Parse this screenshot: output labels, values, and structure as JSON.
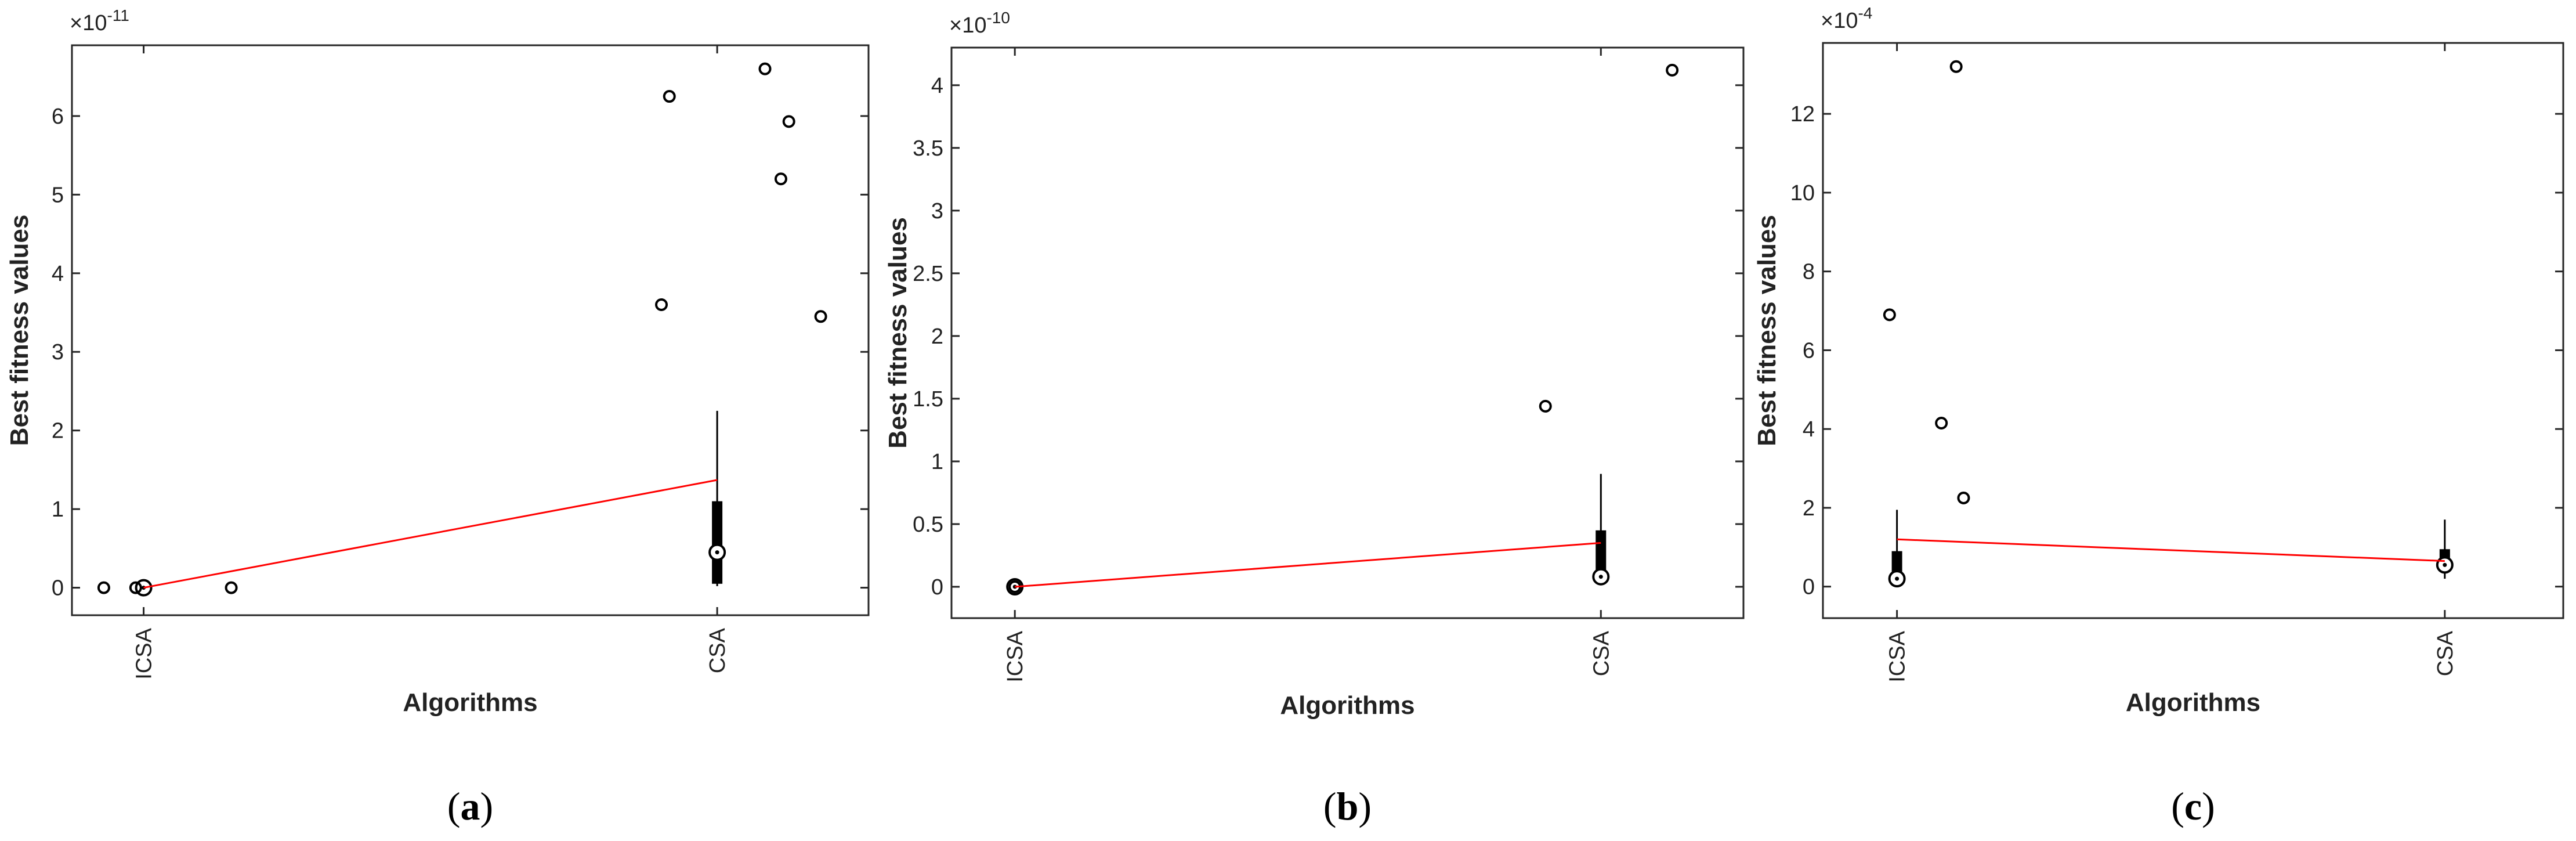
{
  "chart_data": [
    {
      "type": "box",
      "panel_label": "a",
      "xlabel": "Algorithms",
      "ylabel": "Best fitness values",
      "y_exponent": "-11",
      "ylim": [
        -0.35,
        6.9
      ],
      "yticks": [
        0,
        1,
        2,
        3,
        4,
        5,
        6
      ],
      "categories": [
        "ICSA",
        "CSA"
      ],
      "boxes": [
        {
          "category": "ICSA",
          "whisker_low": 0.0,
          "q1": 0.0,
          "median": 0.0,
          "q3": 0.0,
          "whisker_high": 0.0,
          "outliers": [
            {
              "dx": -0.05,
              "y": 0.0
            },
            {
              "dx": -0.01,
              "y": 0.0
            },
            {
              "dx": 0.11,
              "y": 0.0
            }
          ]
        },
        {
          "category": "CSA",
          "whisker_low": 0.02,
          "q1": 0.05,
          "median": 0.45,
          "q3": 1.1,
          "whisker_high": 2.25,
          "outliers": [
            {
              "dx": -0.07,
              "y": 3.6
            },
            {
              "dx": -0.06,
              "y": 6.25
            },
            {
              "dx": 0.06,
              "y": 6.6
            },
            {
              "dx": 0.09,
              "y": 5.93
            },
            {
              "dx": 0.08,
              "y": 5.2
            },
            {
              "dx": 0.13,
              "y": 3.45
            }
          ]
        }
      ],
      "mean_line": [
        0.0,
        1.37
      ],
      "style": {
        "mean_line_color": "#ff0000",
        "box_color": "#000000"
      }
    },
    {
      "type": "box",
      "panel_label": "b",
      "xlabel": "Algorithms",
      "ylabel": "Best fitness values",
      "y_exponent": "-10",
      "ylim": [
        -0.25,
        4.3
      ],
      "yticks": [
        0,
        0.5,
        1,
        1.5,
        2,
        2.5,
        3,
        3.5,
        4
      ],
      "categories": [
        "ICSA",
        "CSA"
      ],
      "boxes": [
        {
          "category": "ICSA",
          "whisker_low": 0.0,
          "q1": 0.0,
          "median": 0.0,
          "q3": 0.0,
          "whisker_high": 0.0,
          "outliers": [
            {
              "dx": 0.0,
              "y": 0.0
            }
          ]
        },
        {
          "category": "CSA",
          "whisker_low": 0.03,
          "q1": 0.06,
          "median": 0.08,
          "q3": 0.45,
          "whisker_high": 0.9,
          "outliers": [
            {
              "dx": -0.07,
              "y": 1.44
            },
            {
              "dx": 0.09,
              "y": 4.12
            }
          ]
        }
      ],
      "mean_line": [
        0.0,
        0.35
      ],
      "style": {
        "mean_line_color": "#ff0000",
        "box_color": "#000000"
      }
    },
    {
      "type": "box",
      "panel_label": "c",
      "xlabel": "Algorithms",
      "ylabel": "Best fitness values",
      "y_exponent": "-4",
      "ylim": [
        -0.8,
        13.8
      ],
      "yticks": [
        0,
        2,
        4,
        6,
        8,
        10,
        12
      ],
      "categories": [
        "ICSA",
        "CSA"
      ],
      "boxes": [
        {
          "category": "ICSA",
          "whisker_low": 0.05,
          "q1": 0.15,
          "median": 0.2,
          "q3": 0.9,
          "whisker_high": 1.95,
          "outliers": [
            {
              "dx": -0.01,
              "y": 6.9
            },
            {
              "dx": 0.06,
              "y": 4.15
            },
            {
              "dx": 0.08,
              "y": 13.2
            },
            {
              "dx": 0.09,
              "y": 2.25
            }
          ]
        },
        {
          "category": "CSA",
          "whisker_low": 0.2,
          "q1": 0.4,
          "median": 0.55,
          "q3": 0.95,
          "whisker_high": 1.7,
          "outliers": []
        }
      ],
      "mean_line": [
        1.2,
        0.65
      ],
      "style": {
        "mean_line_color": "#ff0000",
        "box_color": "#000000"
      }
    }
  ]
}
